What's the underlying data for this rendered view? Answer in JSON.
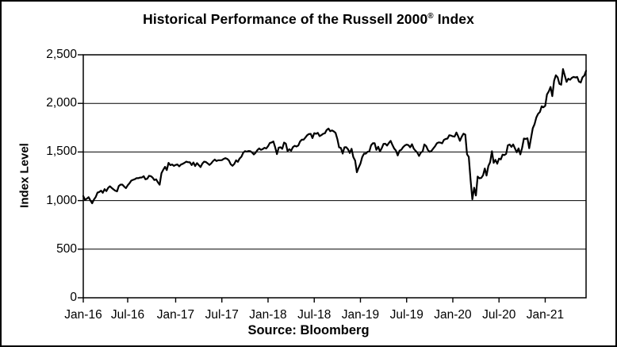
{
  "figure": {
    "title_main": "Historical Performance of the Russell 2000",
    "title_reg": "®",
    "title_tail": " Index",
    "y_axis_label": "Index Level",
    "source_caption": "Source: Bloomberg"
  },
  "chart_data": {
    "type": "line",
    "title": "Historical Performance of the Russell 2000® Index",
    "ylabel": "Index Level",
    "xlabel": "",
    "source": "Source: Bloomberg",
    "legend": "none",
    "grid": "horizontal",
    "background": "#FFFFFF",
    "line_color": "#000000",
    "ylim": [
      0,
      2500
    ],
    "y_tick_values": [
      0,
      500,
      1000,
      1500,
      2000,
      2500
    ],
    "y_tick_labels": [
      "0",
      "500",
      "1,000",
      "1,500",
      "2,000",
      "2,500"
    ],
    "x_tick_labels": [
      "Jan-16",
      "Jul-16",
      "Jan-17",
      "Jul-17",
      "Jan-18",
      "Jul-18",
      "Jan-19",
      "Jul-19",
      "Jan-20",
      "Jul-20",
      "Jan-21"
    ],
    "x_tick_week_indices": [
      0,
      25,
      52,
      78,
      104,
      130,
      156,
      182,
      208,
      234,
      260
    ],
    "series": [
      {
        "name": "Russell 2000 Index Level",
        "frequency": "weekly",
        "range": "Jan-2016 to Jun-2021",
        "values": [
          1046,
          1008,
          1020,
          1035,
          1002,
          972,
          1010,
          1037,
          1082,
          1088,
          1102,
          1080,
          1118,
          1097,
          1131,
          1147,
          1131,
          1115,
          1102,
          1095,
          1150,
          1164,
          1164,
          1145,
          1128,
          1157,
          1177,
          1205,
          1213,
          1220,
          1231,
          1230,
          1237,
          1238,
          1251,
          1219,
          1225,
          1255,
          1252,
          1237,
          1212,
          1218,
          1188,
          1163,
          1282,
          1316,
          1347,
          1314,
          1388,
          1364,
          1372,
          1357,
          1367,
          1372,
          1352,
          1371,
          1378,
          1389,
          1400,
          1395,
          1394,
          1365,
          1392,
          1355,
          1386,
          1365,
          1345,
          1380,
          1400,
          1397,
          1383,
          1367,
          1382,
          1405,
          1422,
          1407,
          1415,
          1415,
          1416,
          1429,
          1436,
          1429,
          1412,
          1374,
          1358,
          1377,
          1414,
          1399,
          1432,
          1451,
          1491,
          1509,
          1503,
          1510,
          1508,
          1495,
          1475,
          1493,
          1519,
          1537,
          1522,
          1530,
          1543,
          1536,
          1560,
          1592,
          1598,
          1608,
          1547,
          1478,
          1544,
          1549,
          1533,
          1597,
          1586,
          1510,
          1529,
          1513,
          1550,
          1564,
          1556,
          1566,
          1607,
          1627,
          1627,
          1648,
          1672,
          1685,
          1686,
          1643,
          1694,
          1687,
          1697,
          1663,
          1673,
          1687,
          1693,
          1726,
          1741,
          1713,
          1722,
          1712,
          1697,
          1632,
          1547,
          1542,
          1484,
          1548,
          1549,
          1528,
          1489,
          1533,
          1448,
          1411,
          1292,
          1338,
          1381,
          1447,
          1483,
          1483,
          1502,
          1506,
          1569,
          1590,
          1590,
          1522,
          1554,
          1506,
          1540,
          1583,
          1585,
          1566,
          1592,
          1614,
          1573,
          1536,
          1514,
          1465,
          1514,
          1523,
          1550,
          1567,
          1576,
          1570,
          1548,
          1579,
          1534,
          1513,
          1494,
          1459,
          1495,
          1505,
          1578,
          1560,
          1520,
          1501,
          1512,
          1535,
          1559,
          1589,
          1599,
          1596,
          1589,
          1625,
          1634,
          1638,
          1672,
          1669,
          1661,
          1658,
          1700,
          1662,
          1614,
          1657,
          1688,
          1679,
          1476,
          1449,
          1210,
          1014,
          1132,
          1052,
          1247,
          1229,
          1233,
          1260,
          1330,
          1257,
          1356,
          1394,
          1507,
          1388,
          1419,
          1379,
          1432,
          1423,
          1473,
          1468,
          1480,
          1569,
          1577,
          1552,
          1578,
          1535,
          1497,
          1537,
          1475,
          1540,
          1638,
          1634,
          1641,
          1538,
          1644,
          1744,
          1785,
          1855,
          1892,
          1912,
          1970,
          1960,
          1975,
          2092,
          2123,
          2169,
          2074,
          2233,
          2289,
          2267,
          2201,
          2192,
          2353,
          2288,
          2221,
          2254,
          2243,
          2263,
          2272,
          2266,
          2272,
          2225,
          2215,
          2269,
          2286,
          2336
        ]
      }
    ]
  }
}
